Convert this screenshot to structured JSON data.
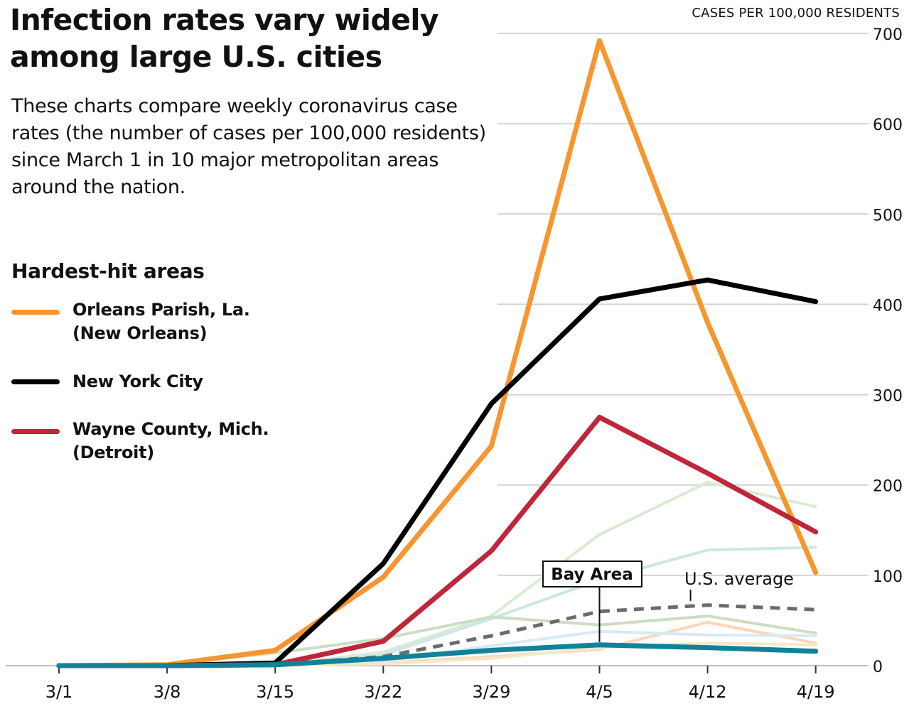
{
  "title": "Infection rates vary widely among large U.S. cities",
  "subtitle": "These charts compare weekly coronavirus case rates (the number of cases per 100,000 residents) since March 1 in 10 major metropolitan areas around the nation.",
  "legend": {
    "title": "Hardest-hit areas",
    "items": [
      {
        "label_line1": "Orleans Parish, La.",
        "label_line2": "(New Orleans)",
        "color": "#f7952e"
      },
      {
        "label_line1": "New York City",
        "label_line2": "",
        "color": "#000000"
      },
      {
        "label_line1": "Wayne County, Mich.",
        "label_line2": "(Detroit)",
        "color": "#c0263a"
      }
    ]
  },
  "chart_data": {
    "type": "line",
    "ylabel": "CASES PER 100,000 RESIDENTS",
    "ylim": [
      0,
      700
    ],
    "yticks": [
      0,
      100,
      200,
      300,
      400,
      500,
      600,
      700
    ],
    "categories": [
      "3/1",
      "3/8",
      "3/15",
      "3/22",
      "3/29",
      "4/5",
      "4/12",
      "4/19"
    ],
    "grid": true,
    "y_axis_side": "right",
    "series": [
      {
        "name": "Orleans Parish, La. (New Orleans)",
        "color": "#f7952e",
        "values": [
          0,
          1,
          17,
          98,
          243,
          692,
          380,
          103
        ]
      },
      {
        "name": "New York City",
        "color": "#000000",
        "values": [
          0,
          0,
          3,
          113,
          290,
          406,
          427,
          403
        ]
      },
      {
        "name": "Wayne County, Mich. (Detroit)",
        "color": "#c0263a",
        "values": [
          0,
          0,
          1,
          27,
          127,
          275,
          213,
          148
        ]
      },
      {
        "name": "",
        "color": "#d9ecd3",
        "values": [
          0,
          0,
          0,
          15,
          55,
          145,
          203,
          176
        ],
        "muted": true
      },
      {
        "name": "",
        "color": "#cde6e8",
        "values": [
          0,
          0,
          0,
          12,
          52,
          95,
          128,
          131
        ],
        "muted": true
      },
      {
        "name": "",
        "color": "#cbddc2",
        "values": [
          0,
          2,
          14,
          30,
          54,
          45,
          55,
          36
        ],
        "muted": true
      },
      {
        "name": "",
        "color": "#fbd7b8",
        "values": [
          0,
          0,
          0,
          3,
          10,
          18,
          48,
          25
        ],
        "muted": true
      },
      {
        "name": "",
        "color": "#d6ebf4",
        "values": [
          0,
          0,
          0,
          5,
          22,
          38,
          34,
          33
        ],
        "muted": true
      },
      {
        "name": "",
        "color": "#f3e8c8",
        "values": [
          0,
          0,
          0,
          2,
          8,
          20,
          25,
          23
        ],
        "muted": true
      },
      {
        "name": "Bay Area",
        "color": "#10829a",
        "values": [
          0,
          0,
          1,
          8,
          17,
          23,
          20,
          16
        ]
      },
      {
        "name": "U.S. average",
        "color": "#6b6b6b",
        "dashed": true,
        "values": [
          0,
          0,
          1,
          10,
          33,
          60,
          67,
          62
        ]
      }
    ],
    "annotations": [
      "Bay Area",
      "U.S. average"
    ]
  }
}
